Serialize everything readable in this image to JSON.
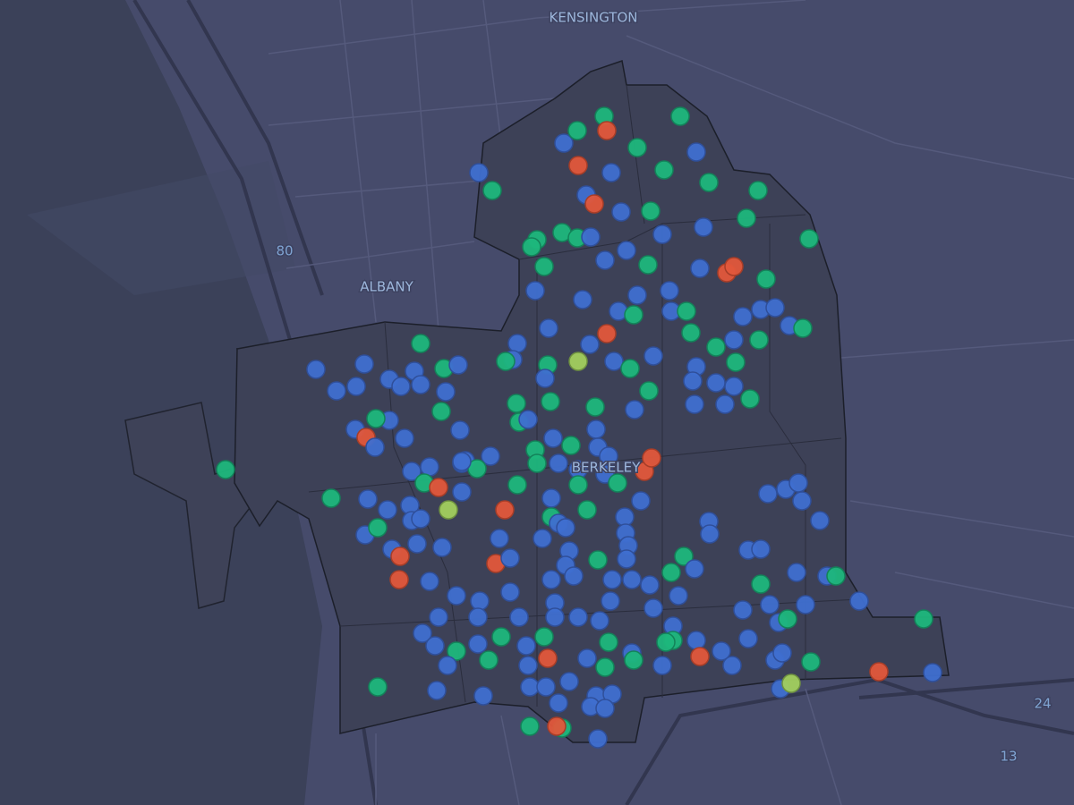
{
  "labels": {
    "kensington": "KENSINGTON",
    "albany": "ALBANY",
    "berkeley": "BERKELEY"
  },
  "shields": {
    "i80": "80",
    "r24": "24",
    "r13": "13"
  }
}
